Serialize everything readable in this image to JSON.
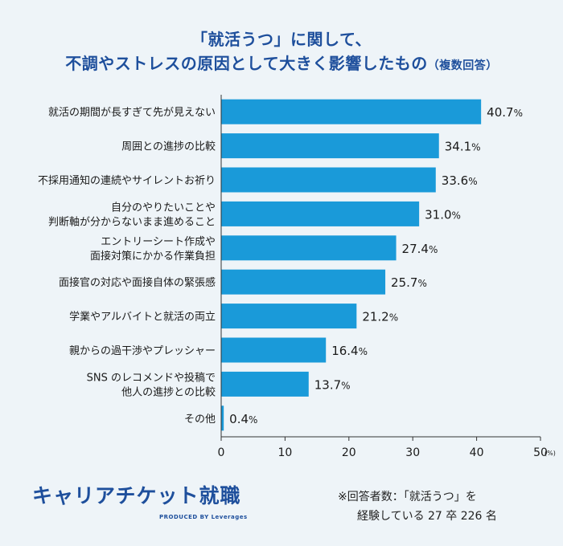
{
  "title": {
    "line1": "「就活うつ」に関して、",
    "line2": "不調やストレスの原因として大きく影響したもの",
    "note": "（複数回答）"
  },
  "chart_data": {
    "type": "bar",
    "orientation": "horizontal",
    "categories": [
      [
        "就活の期間が長すぎて先が見えない"
      ],
      [
        "周囲との進捗の比較"
      ],
      [
        "不採用通知の連続やサイレントお祈り"
      ],
      [
        "自分のやりたいことや",
        "判断軸が分からないまま進めること"
      ],
      [
        "エントリーシート作成や",
        "面接対策にかかる作業負担"
      ],
      [
        "面接官の対応や面接自体の緊張感"
      ],
      [
        "学業やアルバイトと就活の両立"
      ],
      [
        "親からの過干渉やプレッシャー"
      ],
      [
        "SNS のレコメンドや投稿で",
        "他人の進捗との比較"
      ],
      [
        "その他"
      ]
    ],
    "values": [
      40.7,
      34.1,
      33.6,
      31.0,
      27.4,
      25.7,
      21.2,
      16.4,
      13.7,
      0.4
    ],
    "value_labels": [
      "40.7",
      "34.1",
      "33.6",
      "31.0",
      "27.4",
      "25.7",
      "21.2",
      "16.4",
      "13.7",
      "0.4"
    ],
    "value_suffix": "%",
    "xlim": [
      0,
      50
    ],
    "xticks": [
      0,
      10,
      20,
      30,
      40,
      50
    ],
    "xunit": "(%)",
    "bar_color": "#1a9ad9",
    "grid": false
  },
  "logo": {
    "main": "キャリアチケット就職",
    "sub": "PRODUCED BY Leverages"
  },
  "footnote": {
    "line1": "※回答者数：「就活うつ」を",
    "line2": "経験している 27 卒 226 名"
  },
  "colors": {
    "title": "#1e4f9c",
    "background": "#eef4f8"
  }
}
